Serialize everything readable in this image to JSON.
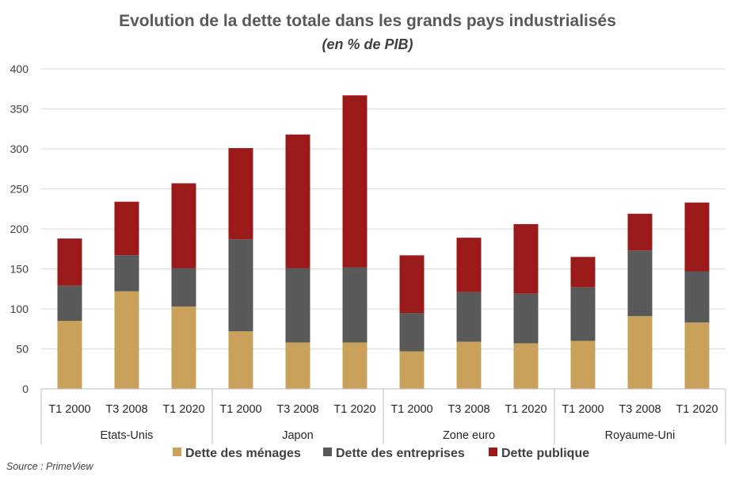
{
  "chart_data": {
    "type": "bar",
    "stacked": true,
    "title": "Evolution de la dette totale dans les grands pays industrialisés",
    "subtitle": "(en % de PIB)",
    "ylim": [
      0,
      400
    ],
    "yticks": [
      0,
      50,
      100,
      150,
      200,
      250,
      300,
      350,
      400
    ],
    "grid": true,
    "legend_position": "bottom",
    "groups": [
      {
        "name": "Etats-Unis",
        "categories": [
          "T1 2000",
          "T3 2008",
          "T1 2020"
        ]
      },
      {
        "name": "Japon",
        "categories": [
          "T1 2000",
          "T3 2008",
          "T1 2020"
        ]
      },
      {
        "name": "Zone euro",
        "categories": [
          "T1 2000",
          "T3 2008",
          "T1 2020"
        ]
      },
      {
        "name": "Royaume-Uni",
        "categories": [
          "T1 2000",
          "T3 2008",
          "T1 2020"
        ]
      }
    ],
    "series": [
      {
        "name": "Dette des ménages",
        "color": "#C9A15B",
        "values": [
          85,
          122,
          103,
          72,
          58,
          58,
          47,
          59,
          57,
          60,
          91,
          83
        ]
      },
      {
        "name": "Dette des entreprises",
        "color": "#595959",
        "values": [
          44,
          45,
          48,
          115,
          93,
          94,
          48,
          62,
          62,
          67,
          82,
          64
        ]
      },
      {
        "name": "Dette publique",
        "color": "#9B1B1B",
        "values": [
          59,
          67,
          106,
          114,
          167,
          215,
          72,
          68,
          87,
          38,
          46,
          86
        ]
      }
    ],
    "source": "Source : PrimeView"
  }
}
